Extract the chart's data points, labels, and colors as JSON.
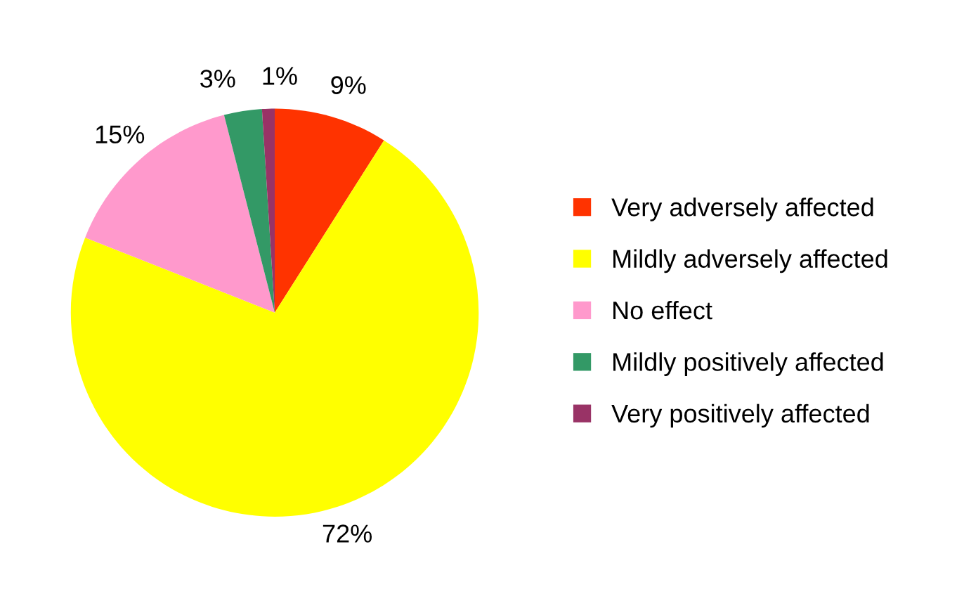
{
  "chart_data": {
    "type": "pie",
    "categories": [
      "Very adversely affected",
      "Mildly adversely affected",
      "No effect",
      "Mildly positively affected",
      "Very positively affected"
    ],
    "values": [
      9,
      72,
      15,
      3,
      1
    ],
    "colors": [
      "#ff3300",
      "#ffff00",
      "#ff99cc",
      "#339966",
      "#993366"
    ],
    "value_labels": [
      "9%",
      "72%",
      "15%",
      "3%",
      "1%"
    ],
    "legend": "right"
  }
}
